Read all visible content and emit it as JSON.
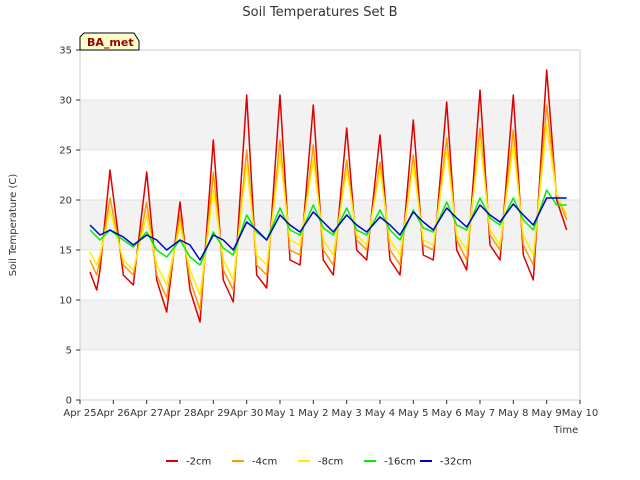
{
  "chart_data": {
    "type": "line",
    "title": "Soil Temperatures Set B",
    "xlabel": "Time",
    "ylabel": "Soil Temperature (C)",
    "ylim": [
      0,
      35
    ],
    "yticks": [
      0,
      5,
      10,
      15,
      20,
      25,
      30,
      35
    ],
    "xlim": [
      0,
      15
    ],
    "xticks": [
      "Apr 25",
      "Apr 26",
      "Apr 27",
      "Apr 28",
      "Apr 29",
      "Apr 30",
      "May 1",
      "May 2",
      "May 3",
      "May 4",
      "May 5",
      "May 6",
      "May 7",
      "May 8",
      "May 9",
      "May 10"
    ],
    "grid": "horizontal bands",
    "legend": "bottom",
    "station_label": "BA_met",
    "series": [
      {
        "name": "-2cm",
        "color": "#dd0000",
        "x": [
          0.3,
          0.5,
          0.6,
          0.9,
          1.3,
          1.6,
          2.0,
          2.3,
          2.6,
          3.0,
          3.3,
          3.6,
          4.0,
          4.3,
          4.6,
          5.0,
          5.3,
          5.6,
          6.0,
          6.3,
          6.6,
          7.0,
          7.3,
          7.6,
          8.0,
          8.3,
          8.6,
          9.0,
          9.3,
          9.6,
          10.0,
          10.3,
          10.6,
          11.0,
          11.3,
          11.6,
          12.0,
          12.3,
          12.6,
          13.0,
          13.3,
          13.6,
          14.0,
          14.3,
          14.6
        ],
        "y": [
          12.8,
          11.0,
          13.0,
          23.0,
          12.5,
          11.5,
          22.8,
          12.0,
          8.8,
          19.8,
          11.0,
          7.8,
          26.0,
          12.0,
          9.8,
          30.5,
          12.5,
          11.2,
          30.5,
          14.0,
          13.5,
          29.5,
          14.0,
          12.5,
          27.2,
          15.0,
          14.0,
          26.5,
          14.0,
          12.5,
          28.0,
          14.5,
          14.0,
          29.8,
          15.0,
          13.0,
          31.0,
          15.5,
          14.0,
          30.5,
          14.5,
          12.0,
          33.0,
          20.0,
          17.0
        ]
      },
      {
        "name": "-4cm",
        "color": "#ff9900",
        "x": [
          0.3,
          0.5,
          0.6,
          0.9,
          1.3,
          1.6,
          2.0,
          2.3,
          2.6,
          3.0,
          3.3,
          3.6,
          4.0,
          4.3,
          4.6,
          5.0,
          5.3,
          5.6,
          6.0,
          6.3,
          6.6,
          7.0,
          7.3,
          7.6,
          8.0,
          8.3,
          8.6,
          9.0,
          9.3,
          9.6,
          10.0,
          10.3,
          10.6,
          11.0,
          11.3,
          11.6,
          12.0,
          12.3,
          12.6,
          13.0,
          13.3,
          13.6,
          14.0,
          14.3,
          14.6
        ],
        "y": [
          14.0,
          12.5,
          14.0,
          20.2,
          13.5,
          12.5,
          19.8,
          12.5,
          10.2,
          18.5,
          12.0,
          9.0,
          22.8,
          13.0,
          11.0,
          25.0,
          13.5,
          12.5,
          26.0,
          15.0,
          14.5,
          25.5,
          15.0,
          13.5,
          24.0,
          16.0,
          15.0,
          23.8,
          15.0,
          13.5,
          24.5,
          15.5,
          15.0,
          26.2,
          16.0,
          14.0,
          27.2,
          16.5,
          15.0,
          27.0,
          15.5,
          13.5,
          29.5,
          20.5,
          18.0
        ]
      },
      {
        "name": "-8cm",
        "color": "#ffee00",
        "x": [
          0.3,
          0.5,
          0.6,
          0.9,
          1.3,
          1.6,
          2.0,
          2.3,
          2.6,
          3.0,
          3.3,
          3.6,
          4.0,
          4.3,
          4.6,
          5.0,
          5.3,
          5.6,
          6.0,
          6.3,
          6.6,
          7.0,
          7.3,
          7.6,
          8.0,
          8.3,
          8.6,
          9.0,
          9.3,
          9.6,
          10.0,
          10.3,
          10.6,
          11.0,
          11.3,
          11.6,
          12.0,
          12.3,
          12.6,
          13.0,
          13.3,
          13.6,
          14.0,
          14.3,
          14.6
        ],
        "y": [
          14.8,
          13.5,
          14.5,
          19.0,
          14.0,
          13.0,
          18.5,
          13.5,
          11.5,
          17.5,
          13.0,
          10.5,
          21.0,
          14.0,
          12.0,
          23.5,
          14.5,
          13.5,
          24.5,
          16.0,
          15.5,
          24.0,
          16.0,
          14.5,
          23.0,
          16.5,
          15.5,
          23.0,
          16.0,
          14.5,
          23.5,
          16.0,
          15.5,
          25.0,
          16.5,
          15.0,
          26.0,
          17.0,
          15.5,
          25.5,
          16.5,
          14.5,
          27.5,
          20.5,
          18.5
        ]
      },
      {
        "name": "-16cm",
        "color": "#00ee00",
        "x": [
          0.3,
          0.6,
          0.9,
          1.3,
          1.6,
          2.0,
          2.3,
          2.6,
          3.0,
          3.3,
          3.6,
          4.0,
          4.3,
          4.6,
          5.0,
          5.3,
          5.6,
          6.0,
          6.3,
          6.6,
          7.0,
          7.3,
          7.6,
          8.0,
          8.3,
          8.6,
          9.0,
          9.3,
          9.6,
          10.0,
          10.3,
          10.6,
          11.0,
          11.3,
          11.6,
          12.0,
          12.3,
          12.6,
          13.0,
          13.3,
          13.6,
          14.0,
          14.3,
          14.6
        ],
        "y": [
          17.0,
          16.0,
          17.0,
          16.0,
          15.3,
          16.8,
          15.0,
          14.3,
          16.0,
          14.3,
          13.5,
          16.8,
          15.2,
          14.5,
          18.5,
          16.8,
          16.0,
          19.2,
          17.0,
          16.5,
          19.5,
          17.2,
          16.5,
          19.2,
          17.0,
          16.5,
          19.0,
          17.0,
          16.0,
          19.0,
          17.2,
          16.8,
          19.8,
          17.5,
          17.0,
          20.2,
          18.2,
          17.5,
          20.2,
          18.0,
          17.0,
          21.0,
          19.5,
          19.5
        ]
      },
      {
        "name": "-32cm",
        "color": "#0000cc",
        "x": [
          0.3,
          0.6,
          0.9,
          1.3,
          1.6,
          2.0,
          2.3,
          2.6,
          3.0,
          3.3,
          3.6,
          4.0,
          4.3,
          4.6,
          5.0,
          5.3,
          5.6,
          6.0,
          6.3,
          6.6,
          7.0,
          7.3,
          7.6,
          8.0,
          8.3,
          8.6,
          9.0,
          9.3,
          9.6,
          10.0,
          10.3,
          10.6,
          11.0,
          11.3,
          11.6,
          12.0,
          12.3,
          12.6,
          13.0,
          13.3,
          13.6,
          14.0,
          14.3,
          14.6
        ],
        "y": [
          17.5,
          16.5,
          17.0,
          16.3,
          15.5,
          16.5,
          16.0,
          15.0,
          16.0,
          15.5,
          14.0,
          16.5,
          16.0,
          15.0,
          17.8,
          17.0,
          16.0,
          18.5,
          17.5,
          16.8,
          18.8,
          17.8,
          16.8,
          18.5,
          17.5,
          16.8,
          18.3,
          17.5,
          16.5,
          18.8,
          17.8,
          17.0,
          19.2,
          18.2,
          17.3,
          19.5,
          18.5,
          17.8,
          19.6,
          18.5,
          17.5,
          20.2,
          20.2,
          20.2
        ]
      }
    ]
  }
}
